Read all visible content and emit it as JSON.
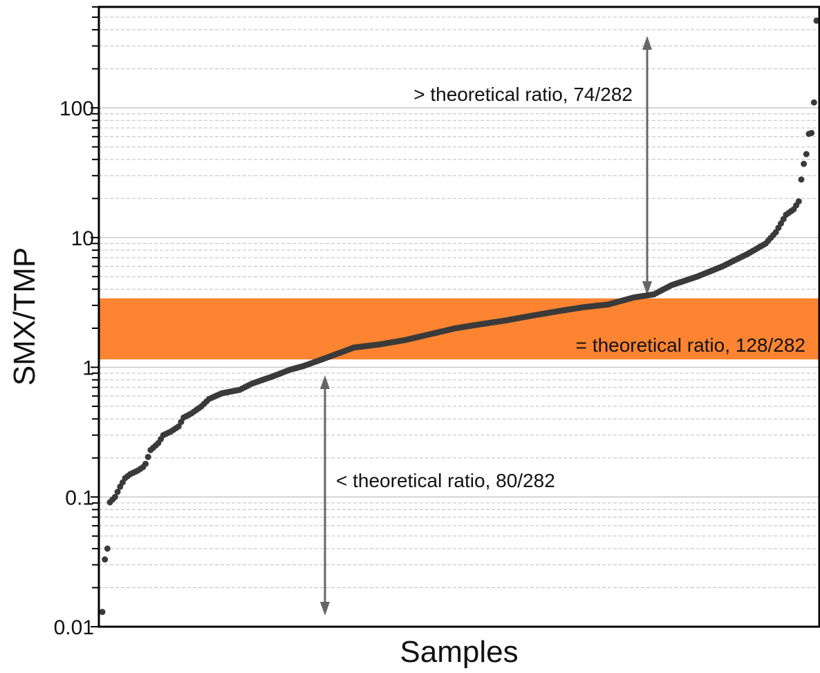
{
  "chart_data": {
    "type": "scatter",
    "title": "",
    "xlabel": "Samples",
    "ylabel": "SMX/TMP",
    "yscale": "log",
    "ylim": [
      0.01,
      600
    ],
    "yticks": [
      {
        "value": 0.01,
        "label": "0.01"
      },
      {
        "value": 0.1,
        "label": "0.1"
      },
      {
        "value": 1,
        "label": "1"
      },
      {
        "value": 10,
        "label": "10"
      },
      {
        "value": 100,
        "label": "100"
      }
    ],
    "grid": true,
    "n_samples": 282,
    "band": {
      "y_low": 1.15,
      "y_high": 3.4,
      "color": "#fe8432"
    },
    "point_color": "#3a3a3a",
    "series": [
      {
        "anchors": [
          [
            1,
            0.013
          ],
          [
            2,
            0.033
          ],
          [
            3,
            0.04
          ],
          [
            4,
            0.091
          ],
          [
            6,
            0.1
          ],
          [
            8,
            0.12
          ],
          [
            10,
            0.14
          ],
          [
            12,
            0.15
          ],
          [
            15,
            0.16
          ],
          [
            17,
            0.17
          ],
          [
            18,
            0.18
          ],
          [
            20,
            0.23
          ],
          [
            23,
            0.26
          ],
          [
            25,
            0.3
          ],
          [
            28,
            0.32
          ],
          [
            31,
            0.35
          ],
          [
            33,
            0.41
          ],
          [
            36,
            0.44
          ],
          [
            40,
            0.5
          ],
          [
            43,
            0.57
          ],
          [
            48,
            0.63
          ],
          [
            55,
            0.67
          ],
          [
            60,
            0.75
          ],
          [
            68,
            0.85
          ],
          [
            75,
            0.96
          ],
          [
            80,
            1.02
          ],
          [
            90,
            1.2
          ],
          [
            100,
            1.42
          ],
          [
            110,
            1.5
          ],
          [
            120,
            1.62
          ],
          [
            130,
            1.8
          ],
          [
            140,
            2.0
          ],
          [
            150,
            2.15
          ],
          [
            160,
            2.3
          ],
          [
            170,
            2.5
          ],
          [
            180,
            2.7
          ],
          [
            190,
            2.9
          ],
          [
            200,
            3.05
          ],
          [
            210,
            3.45
          ],
          [
            218,
            3.65
          ],
          [
            225,
            4.3
          ],
          [
            235,
            5.0
          ],
          [
            245,
            6.0
          ],
          [
            255,
            7.5
          ],
          [
            262,
            9.0
          ],
          [
            266,
            11.0
          ],
          [
            270,
            15.0
          ],
          [
            273,
            16.5
          ],
          [
            275,
            19.0
          ],
          [
            276,
            28.0
          ],
          [
            277,
            37.0
          ],
          [
            278,
            44.0
          ],
          [
            279,
            63.0
          ],
          [
            280,
            64.0
          ],
          [
            281,
            110.0
          ],
          [
            282,
            470.0
          ]
        ]
      }
    ],
    "annotations": {
      "above": "> theoretical ratio, 74/282",
      "within": "= theoretical ratio, 128/282",
      "below": "< theoretical ratio, 80/282"
    }
  }
}
